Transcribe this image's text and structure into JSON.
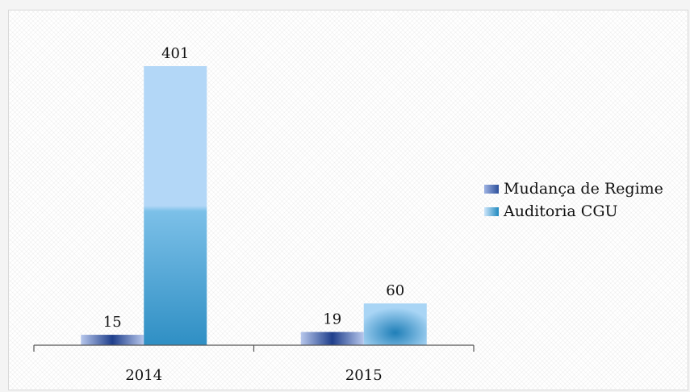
{
  "chart_data": {
    "type": "bar",
    "categories": [
      "2014",
      "2015"
    ],
    "series": [
      {
        "name": "Mudança de Regime",
        "values": [
          15,
          19
        ],
        "color": "#3a5fb0"
      },
      {
        "name": "Auditoria CGU",
        "values": [
          401,
          60
        ],
        "color": "#a8d2f5"
      }
    ],
    "ylim": [
      0,
      420
    ],
    "grid": false,
    "data_labels": true,
    "legend_position": "right"
  }
}
